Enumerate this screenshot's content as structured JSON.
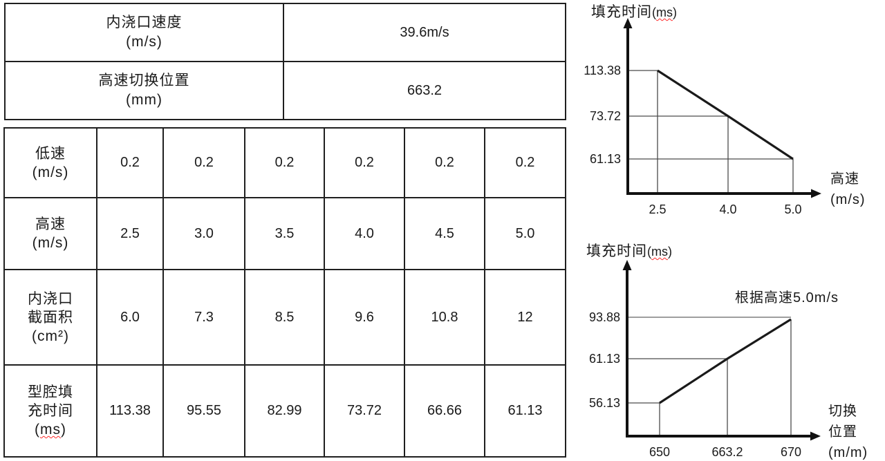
{
  "top_table": {
    "rows": [
      {
        "label_lines": [
          "内浇口速度",
          "(m/s)"
        ],
        "value": "39.6m/s"
      },
      {
        "label_lines": [
          "高速切换位置",
          "(mm)"
        ],
        "value": "663.2"
      }
    ]
  },
  "spec_table": {
    "rows": [
      {
        "header_lines": [
          "低速",
          "(m/s)"
        ],
        "wavy_ms": false,
        "values": [
          "0.2",
          "0.2",
          "0.2",
          "0.2",
          "0.2",
          "0.2"
        ]
      },
      {
        "header_lines": [
          "高速",
          "(m/s)"
        ],
        "wavy_ms": false,
        "values": [
          "2.5",
          "3.0",
          "3.5",
          "4.0",
          "4.5",
          "5.0"
        ]
      },
      {
        "header_lines": [
          "内浇口",
          "截面积",
          "(cm²)"
        ],
        "wavy_ms": false,
        "values": [
          "6.0",
          "7.3",
          "8.5",
          "9.6",
          "10.8",
          "12"
        ]
      },
      {
        "header_lines": [
          "型腔填",
          "充时间",
          "(ms)"
        ],
        "wavy_ms": true,
        "values": [
          "113.38",
          "95.55",
          "82.99",
          "73.72",
          "66.66",
          "61.13"
        ]
      }
    ]
  },
  "chart_data": [
    {
      "type": "line",
      "title": "填充时间",
      "title_unit": "(ms)",
      "xlabel_lines": [
        "高速",
        "(m/s)"
      ],
      "x_ticks": [
        "2.5",
        "4.0",
        "5.0"
      ],
      "y_ticks": [
        "113.38",
        "73.72",
        "61.13"
      ],
      "points": [
        {
          "x": "2.5",
          "y": "113.38"
        },
        {
          "x": "4.0",
          "y": "73.72"
        },
        {
          "x": "5.0",
          "y": "61.13"
        }
      ],
      "annotation": null,
      "line_color": "#1a1a1a",
      "grid": "guide-lines-to-axes",
      "legend": "none"
    },
    {
      "type": "line",
      "title": "填充时间",
      "title_unit": "(ms)",
      "xlabel_lines": [
        "切换",
        "位置",
        "(m/m)"
      ],
      "x_ticks": [
        "650",
        "663.2",
        "670"
      ],
      "y_ticks": [
        "93.88",
        "61.13",
        "56.13"
      ],
      "points": [
        {
          "x": "650",
          "y": "56.13"
        },
        {
          "x": "663.2",
          "y": "61.13"
        },
        {
          "x": "670",
          "y": "93.88",
          "guide_color": "#909090"
        }
      ],
      "annotation": "根据高速5.0m/s",
      "line_color": "#1a1a1a",
      "grid": "guide-lines-to-axes",
      "legend": "none"
    }
  ]
}
